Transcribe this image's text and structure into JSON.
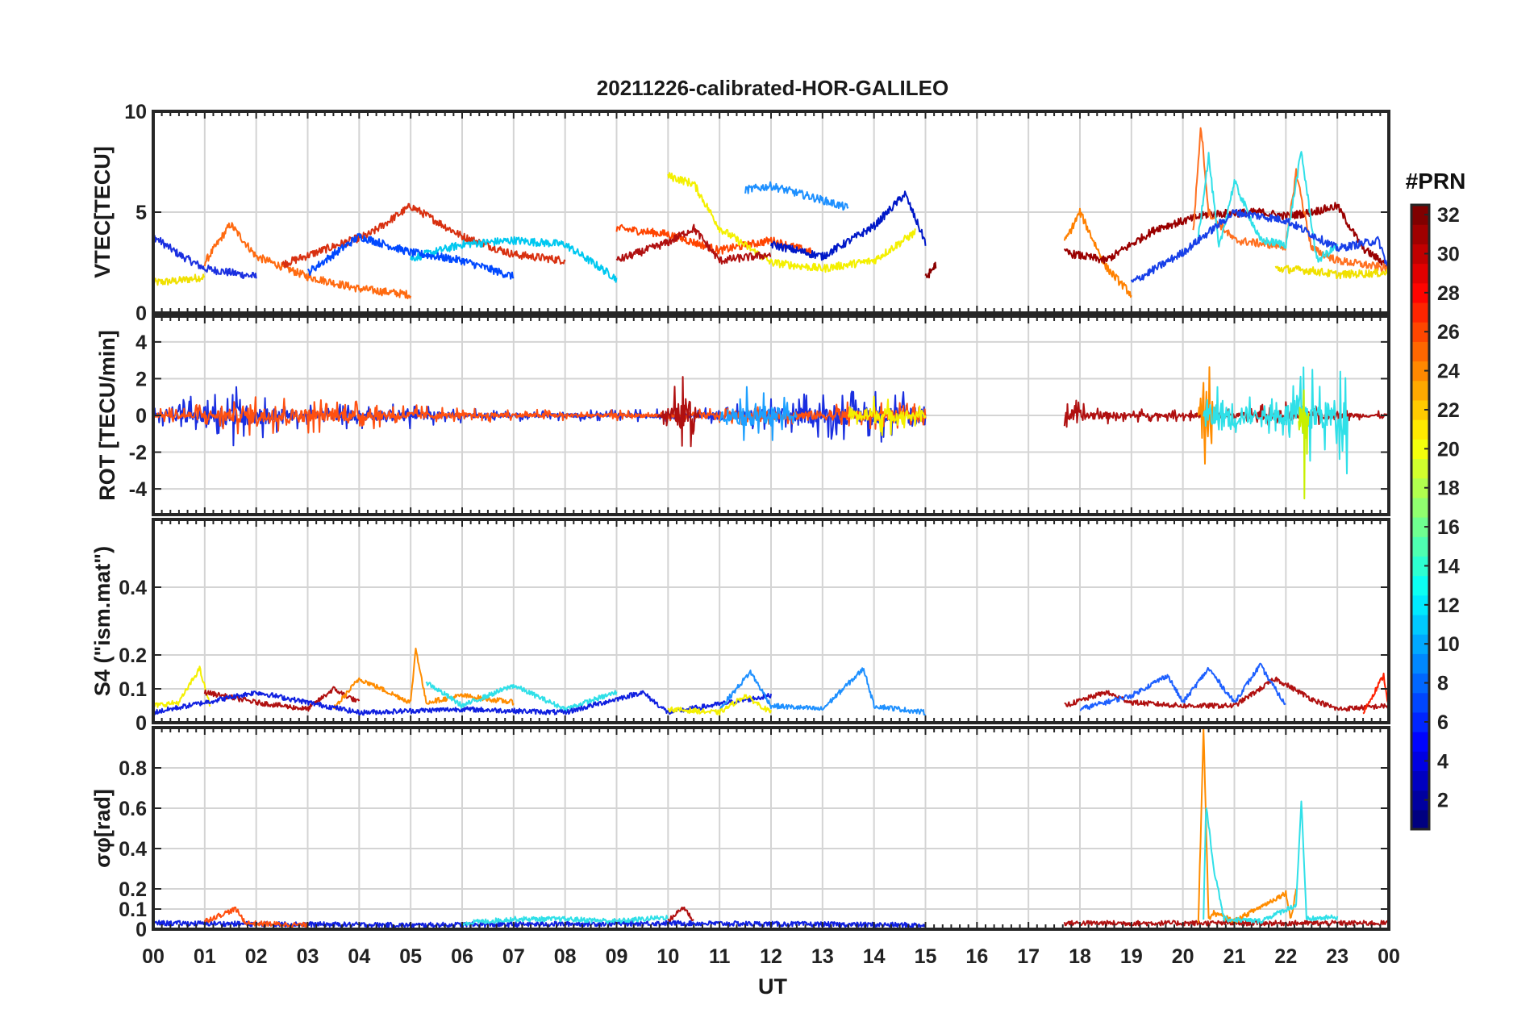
{
  "chart_data": [
    {
      "type": "line",
      "title": "20211226-calibrated-HOR-GALILEO",
      "ylabel": "VTEC[TECU]",
      "ylim": [
        0,
        10
      ],
      "yticks": [
        0,
        5,
        10
      ],
      "yticklabels": [
        "0",
        "5",
        "10"
      ],
      "grid": true,
      "series": [
        {
          "color": "#f0e000",
          "x": [
            0.0,
            0.5,
            1.0
          ],
          "y": [
            1.5,
            1.6,
            1.8
          ]
        },
        {
          "color": "#1a2fe0",
          "x": [
            0.0,
            0.5,
            1.0,
            1.5,
            2.0
          ],
          "y": [
            3.8,
            2.9,
            2.2,
            2.0,
            1.8
          ]
        },
        {
          "color": "#ff6a10",
          "x": [
            1.0,
            1.5,
            2.0,
            3.0,
            4.0,
            5.0
          ],
          "y": [
            2.5,
            4.4,
            2.8,
            1.8,
            1.2,
            0.9
          ]
        },
        {
          "color": "#d83010",
          "x": [
            2.5,
            3.5,
            4.2,
            5.0,
            6.0,
            7.0,
            8.0
          ],
          "y": [
            2.4,
            3.3,
            3.9,
            5.3,
            3.8,
            2.9,
            2.6
          ]
        },
        {
          "color": "#00c8f0",
          "x": [
            5.0,
            6.0,
            7.0,
            8.0,
            9.0
          ],
          "y": [
            2.7,
            3.4,
            3.6,
            3.4,
            1.7
          ]
        },
        {
          "color": "#0048ff",
          "x": [
            3.0,
            4.0,
            5.0,
            6.0,
            7.0
          ],
          "y": [
            2.0,
            3.8,
            3.0,
            2.6,
            1.8
          ]
        },
        {
          "color": "#ff4400",
          "x": [
            9.0,
            10.0,
            11.0,
            12.0,
            12.8
          ],
          "y": [
            4.2,
            3.9,
            3.1,
            3.6,
            3.0
          ]
        },
        {
          "color": "#f4f000",
          "x": [
            10.0,
            10.5,
            11.0,
            12.0,
            13.0,
            14.0,
            14.8
          ],
          "y": [
            6.8,
            6.4,
            4.2,
            2.5,
            2.2,
            2.6,
            4.0
          ]
        },
        {
          "color": "#1e90ff",
          "x": [
            11.5,
            12.0,
            13.0,
            13.5
          ],
          "y": [
            6.1,
            6.3,
            5.6,
            5.2
          ]
        },
        {
          "color": "#0018c8",
          "x": [
            12.0,
            13.0,
            14.0,
            14.6,
            15.0
          ],
          "y": [
            3.4,
            2.8,
            4.3,
            5.9,
            3.5
          ]
        },
        {
          "color": "#b01010",
          "x": [
            9.0,
            10.0,
            10.5,
            11.0,
            12.0
          ],
          "y": [
            2.6,
            3.5,
            4.2,
            2.6,
            2.9
          ]
        },
        {
          "color": "#8a0000",
          "x": [
            15.0,
            15.2
          ],
          "y": [
            1.7,
            2.4
          ]
        },
        {
          "color": "#ff8000",
          "x": [
            17.7,
            18.0,
            18.5,
            19.0
          ],
          "y": [
            3.5,
            5.0,
            2.3,
            0.9
          ]
        },
        {
          "color": "#9a0000",
          "x": [
            17.7,
            18.5,
            19.5,
            20.5,
            21.5,
            22.0,
            22.5,
            23.0,
            23.5,
            24.0
          ],
          "y": [
            3.0,
            2.6,
            4.2,
            4.9,
            5.0,
            4.8,
            5.0,
            5.3,
            3.2,
            2.3
          ]
        },
        {
          "color": "#ff7020",
          "x": [
            20.2,
            20.35,
            20.5,
            21.0,
            22.0,
            22.2,
            22.5,
            23.0,
            24.0
          ],
          "y": [
            4.0,
            9.3,
            5.0,
            3.6,
            3.3,
            7.0,
            3.2,
            2.6,
            2.2
          ]
        },
        {
          "color": "#30e0e8",
          "x": [
            20.3,
            20.5,
            20.7,
            21.0,
            21.5,
            22.0,
            22.3,
            22.6,
            23.0
          ],
          "y": [
            3.8,
            7.8,
            3.2,
            6.5,
            3.6,
            3.4,
            8.0,
            2.6,
            3.3
          ]
        },
        {
          "color": "#1840e8",
          "x": [
            19.0,
            20.0,
            21.0,
            22.0,
            23.0,
            23.8,
            24.0
          ],
          "y": [
            1.5,
            3.0,
            5.0,
            4.6,
            3.2,
            3.6,
            2.1
          ]
        },
        {
          "color": "#f0e000",
          "x": [
            21.8,
            22.5,
            23.0,
            24.0
          ],
          "y": [
            2.2,
            2.1,
            1.9,
            2.0
          ]
        }
      ]
    },
    {
      "type": "line",
      "ylabel": "ROT [TECU/min]",
      "ylim": [
        -5.4,
        5.4
      ],
      "yticks": [
        -4,
        -2,
        0,
        2,
        4
      ],
      "yticklabels": [
        "-4",
        "-2",
        "0",
        "2",
        "4"
      ],
      "grid": true,
      "series": [
        {
          "color": "#1a2fe0",
          "x": [
            0.0,
            1.5,
            3.0,
            4.5,
            6.0,
            7.5,
            9.0,
            10.5,
            12.0,
            13.5,
            15.0
          ],
          "amplitude": [
            0.4,
            1.8,
            0.6,
            0.9,
            0.4,
            0.3,
            0.3,
            0.4,
            1.0,
            1.4,
            1.6
          ]
        },
        {
          "color": "#ff5010",
          "x": [
            0.0,
            2.0,
            4.0,
            6.0,
            8.0,
            10.0,
            12.0,
            14.0,
            15.0
          ],
          "amplitude": [
            0.3,
            1.2,
            0.8,
            0.4,
            0.3,
            0.3,
            0.6,
            0.8,
            0.6
          ]
        },
        {
          "color": "#b01010",
          "x": [
            9.8,
            10.2,
            10.4,
            10.6
          ],
          "amplitude": [
            0.5,
            1.9,
            2.6,
            0.5
          ]
        },
        {
          "color": "#1ea0ff",
          "x": [
            11.0,
            11.5,
            12.0,
            12.5
          ],
          "amplitude": [
            0.8,
            1.6,
            1.4,
            0.6
          ]
        },
        {
          "color": "#f4f000",
          "x": [
            13.5,
            14.0,
            14.5,
            15.0
          ],
          "amplitude": [
            0.6,
            1.2,
            1.0,
            0.4
          ]
        },
        {
          "color": "#b01010",
          "x": [
            17.7,
            18.5,
            19.5,
            21.0,
            22.0,
            23.0,
            24.0
          ],
          "amplitude": [
            1.0,
            0.5,
            0.3,
            0.4,
            0.8,
            0.4,
            0.2
          ]
        },
        {
          "color": "#ff8c00",
          "x": [
            20.3,
            20.4,
            20.5,
            20.7
          ],
          "amplitude": [
            0.8,
            5.2,
            3.3,
            0.5
          ]
        },
        {
          "color": "#30e0e8",
          "x": [
            20.4,
            20.8,
            21.5,
            22.0,
            22.4,
            22.8,
            23.2
          ],
          "amplitude": [
            1.2,
            2.6,
            0.6,
            1.8,
            3.0,
            2.0,
            3.4
          ]
        },
        {
          "color": "#c8f000",
          "x": [
            22.25,
            22.35,
            22.45
          ],
          "amplitude": [
            1.0,
            5.4,
            1.0
          ]
        }
      ]
    },
    {
      "type": "line",
      "ylabel": "S4 (\"ism.mat\")",
      "ylim": [
        0,
        0.6
      ],
      "yticks": [
        0,
        0.1,
        0.2,
        0.4
      ],
      "yticklabels": [
        "0",
        "0.1",
        "0.2",
        "0.4"
      ],
      "grid": true,
      "series": [
        {
          "color": "#f4f000",
          "x": [
            0.0,
            0.5,
            0.9,
            1.1
          ],
          "y": [
            0.05,
            0.06,
            0.16,
            0.05
          ]
        },
        {
          "color": "#b01010",
          "x": [
            1.0,
            2.0,
            3.0,
            3.5,
            4.0
          ],
          "y": [
            0.09,
            0.06,
            0.04,
            0.1,
            0.06
          ]
        },
        {
          "color": "#ff8c00",
          "x": [
            3.5,
            4.0,
            5.0,
            5.1,
            5.3,
            6.0,
            7.0
          ],
          "y": [
            0.04,
            0.13,
            0.06,
            0.22,
            0.06,
            0.08,
            0.06
          ]
        },
        {
          "color": "#30e0e8",
          "x": [
            5.3,
            5.6,
            6.0,
            7.0,
            8.0,
            9.0
          ],
          "y": [
            0.12,
            0.09,
            0.05,
            0.11,
            0.04,
            0.09
          ]
        },
        {
          "color": "#1020e0",
          "x": [
            0.0,
            2.0,
            4.0,
            6.0,
            8.0,
            9.5,
            10.0,
            12.0
          ],
          "y": [
            0.03,
            0.09,
            0.03,
            0.04,
            0.03,
            0.09,
            0.03,
            0.08
          ]
        },
        {
          "color": "#1e90ff",
          "x": [
            11.0,
            11.6,
            12.0,
            13.0,
            13.8,
            14.0,
            15.0
          ],
          "y": [
            0.04,
            0.15,
            0.05,
            0.04,
            0.16,
            0.05,
            0.03
          ]
        },
        {
          "color": "#f4f000",
          "x": [
            10.0,
            11.0,
            11.5,
            12.0
          ],
          "y": [
            0.04,
            0.03,
            0.08,
            0.03
          ]
        },
        {
          "color": "#b01010",
          "x": [
            17.7,
            18.5,
            19.0,
            20.0,
            21.0,
            21.8,
            22.5,
            23.0,
            24.0
          ],
          "y": [
            0.05,
            0.09,
            0.06,
            0.05,
            0.05,
            0.13,
            0.07,
            0.04,
            0.05
          ]
        },
        {
          "color": "#1e60ff",
          "x": [
            18.0,
            19.0,
            19.7,
            20.0,
            20.5,
            21.0,
            21.5,
            22.0
          ],
          "y": [
            0.04,
            0.08,
            0.14,
            0.06,
            0.16,
            0.06,
            0.17,
            0.05
          ]
        },
        {
          "color": "#ff2000",
          "x": [
            23.5,
            23.9,
            24.0
          ],
          "y": [
            0.03,
            0.14,
            0.04
          ]
        }
      ]
    },
    {
      "type": "line",
      "ylabel": "σφ[rad]",
      "ylim": [
        0,
        1
      ],
      "yticks": [
        0,
        0.1,
        0.2,
        0.4,
        0.6,
        0.8
      ],
      "yticklabels": [
        "0",
        "0.1",
        "0.2",
        "0.4",
        "0.6",
        "0.8"
      ],
      "grid": true,
      "series": [
        {
          "color": "#1020e0",
          "x": [
            0.0,
            5.0,
            10.0,
            15.0
          ],
          "y": [
            0.03,
            0.02,
            0.03,
            0.02
          ]
        },
        {
          "color": "#ff5010",
          "x": [
            1.0,
            1.6,
            1.8,
            3.0
          ],
          "y": [
            0.04,
            0.1,
            0.03,
            0.02
          ]
        },
        {
          "color": "#30e0e8",
          "x": [
            6.0,
            7.0,
            8.0,
            9.0,
            10.0
          ],
          "y": [
            0.03,
            0.05,
            0.05,
            0.04,
            0.06
          ]
        },
        {
          "color": "#b01010",
          "x": [
            10.0,
            10.3,
            10.5
          ],
          "y": [
            0.04,
            0.11,
            0.04
          ]
        },
        {
          "color": "#b01010",
          "x": [
            17.7,
            19.0,
            20.0,
            24.0
          ],
          "y": [
            0.03,
            0.03,
            0.03,
            0.03
          ]
        },
        {
          "color": "#ff8c00",
          "x": [
            20.3,
            20.4,
            20.5,
            20.6,
            21.0,
            22.0,
            22.1,
            22.2
          ],
          "y": [
            0.03,
            1.0,
            0.05,
            0.08,
            0.04,
            0.18,
            0.05,
            0.2
          ]
        },
        {
          "color": "#30e0e8",
          "x": [
            20.4,
            20.45,
            20.6,
            20.8,
            21.5,
            22.2,
            22.3,
            22.4,
            23.0
          ],
          "y": [
            0.05,
            0.62,
            0.3,
            0.05,
            0.04,
            0.12,
            0.64,
            0.05,
            0.06
          ]
        }
      ]
    }
  ],
  "shared_x": {
    "label": "UT",
    "xlim": [
      0,
      24
    ],
    "ticks": [
      "00",
      "01",
      "02",
      "03",
      "04",
      "05",
      "06",
      "07",
      "08",
      "09",
      "10",
      "11",
      "12",
      "13",
      "14",
      "15",
      "16",
      "17",
      "18",
      "19",
      "20",
      "21",
      "22",
      "23",
      "00"
    ]
  },
  "colorbar": {
    "title": "#PRN",
    "range": [
      1,
      32
    ],
    "ticks": [
      "2",
      "4",
      "6",
      "8",
      "10",
      "12",
      "14",
      "16",
      "18",
      "20",
      "22",
      "24",
      "26",
      "28",
      "30",
      "32"
    ],
    "colormap": "jet"
  }
}
